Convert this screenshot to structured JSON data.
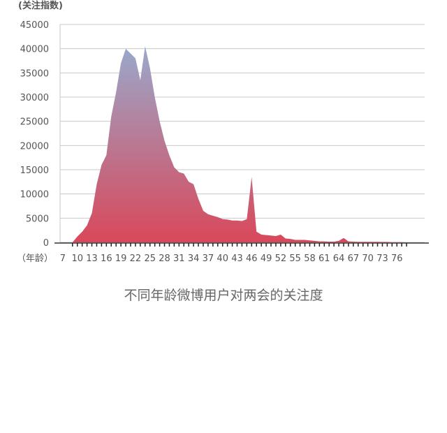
{
  "chart_data": {
    "type": "area",
    "title": "不同年龄微博用户对两会的关注度",
    "ylabel": "(关注指数)",
    "xlabel": "（年龄）",
    "ylim": [
      0,
      45000
    ],
    "yticks": [
      0,
      5000,
      10000,
      15000,
      20000,
      25000,
      30000,
      35000,
      40000,
      45000
    ],
    "xticks": [
      7,
      10,
      13,
      16,
      19,
      22,
      25,
      28,
      31,
      34,
      37,
      40,
      43,
      46,
      49,
      52,
      55,
      58,
      61,
      64,
      67,
      70,
      73,
      76
    ],
    "xlim": [
      6,
      80
    ],
    "grid": true,
    "gradient": {
      "top": "#9aa8cc",
      "bottom": "#d9485a"
    },
    "series": [
      {
        "x": [
          9,
          10,
          11,
          12,
          13,
          14,
          15,
          16,
          17,
          18,
          19,
          20,
          21,
          22,
          23,
          24,
          25,
          26,
          27,
          28,
          29,
          30,
          31,
          32,
          33,
          34,
          35,
          36,
          37,
          38,
          39,
          40,
          41,
          42,
          43,
          44,
          45,
          46,
          47,
          48,
          49,
          50,
          51,
          52,
          53,
          54,
          55,
          56,
          57,
          58,
          59,
          60,
          61,
          62,
          63,
          64,
          65,
          66,
          67,
          68,
          69,
          70,
          71,
          72,
          73,
          74,
          75,
          76,
          77,
          78
        ],
        "values": [
          0,
          1200,
          2200,
          3500,
          6000,
          12000,
          16000,
          18000,
          26000,
          31000,
          37000,
          40000,
          39000,
          38000,
          33500,
          40500,
          36000,
          30000,
          25000,
          21000,
          18000,
          15500,
          14500,
          14200,
          12500,
          12000,
          9000,
          6500,
          5800,
          5500,
          5200,
          4800,
          4700,
          4500,
          4500,
          4400,
          4800,
          13500,
          2200,
          1600,
          1500,
          1400,
          1300,
          1600,
          800,
          700,
          500,
          500,
          500,
          400,
          300,
          200,
          200,
          150,
          150,
          300,
          900,
          200,
          150,
          100,
          100,
          100,
          100,
          100,
          80,
          80,
          50,
          50,
          30,
          0
        ]
      }
    ]
  }
}
